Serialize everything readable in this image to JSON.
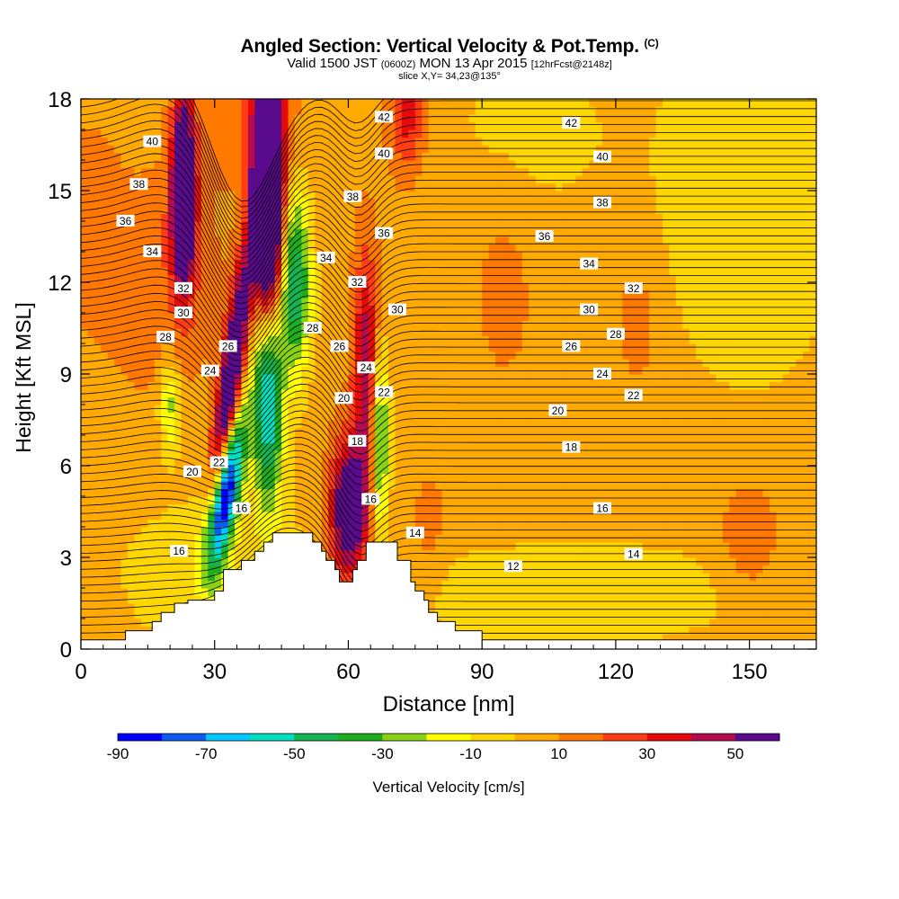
{
  "header": {
    "title": "Angled Section: Vertical Velocity & Pot.Temp.",
    "title_units": "(C)",
    "valid_prefix": "Valid 1500 JST",
    "valid_utc": "(0600Z)",
    "valid_date": "MON 13 Apr 2015",
    "forecast": "[12hrFcst@2148z]",
    "slice": "slice X,Y= 34,23@135°"
  },
  "chart_data": {
    "type": "heatmap",
    "xlabel": "Distance [nm]",
    "ylabel": "Height [Kft MSL]",
    "xlim": [
      0,
      165
    ],
    "ylim": [
      0,
      18
    ],
    "x_ticks": [
      0,
      30,
      60,
      90,
      120,
      150
    ],
    "y_ticks": [
      0,
      3,
      6,
      9,
      12,
      15,
      18
    ],
    "grid": false,
    "colorbar": {
      "label": "Vertical Velocity [cm/s]",
      "boundaries": [
        -90,
        -80,
        -70,
        -60,
        -50,
        -40,
        -30,
        -20,
        -10,
        0,
        10,
        20,
        30,
        40,
        50,
        60
      ],
      "tick_labels": [
        "-90",
        "-70",
        "-50",
        "-30",
        "-10",
        "10",
        "30",
        "50"
      ],
      "tick_values": [
        -90,
        -70,
        -50,
        -30,
        -10,
        10,
        30,
        50
      ],
      "colors": [
        "#0000ff",
        "#0a5cf0",
        "#00c8ff",
        "#00e0c0",
        "#14b450",
        "#1ead1e",
        "#88d214",
        "#ffff00",
        "#ffd700",
        "#ffaa00",
        "#ff7800",
        "#ff3c14",
        "#e60a0a",
        "#b40a4e",
        "#5a0a8c"
      ]
    },
    "terrain": [
      [
        0,
        0.3
      ],
      [
        10,
        0.3
      ],
      [
        10,
        0.6
      ],
      [
        16,
        0.6
      ],
      [
        16,
        0.9
      ],
      [
        18,
        0.9
      ],
      [
        18,
        1.2
      ],
      [
        21,
        1.2
      ],
      [
        21,
        1.5
      ],
      [
        24,
        1.5
      ],
      [
        24,
        1.6
      ],
      [
        30,
        1.6
      ],
      [
        30,
        1.9
      ],
      [
        32,
        1.9
      ],
      [
        32,
        2.6
      ],
      [
        36,
        2.6
      ],
      [
        36,
        2.9
      ],
      [
        39,
        2.9
      ],
      [
        39,
        3.2
      ],
      [
        41,
        3.2
      ],
      [
        41,
        3.5
      ],
      [
        43,
        3.5
      ],
      [
        43,
        3.8
      ],
      [
        52,
        3.8
      ],
      [
        52,
        3.5
      ],
      [
        54,
        3.5
      ],
      [
        54,
        3.2
      ],
      [
        55,
        3.2
      ],
      [
        55,
        2.9
      ],
      [
        57,
        2.9
      ],
      [
        57,
        2.6
      ],
      [
        58,
        2.6
      ],
      [
        58,
        2.2
      ],
      [
        61,
        2.2
      ],
      [
        61,
        2.6
      ],
      [
        62,
        2.6
      ],
      [
        62,
        2.9
      ],
      [
        64,
        2.9
      ],
      [
        64,
        3.5
      ],
      [
        71,
        3.5
      ],
      [
        71,
        2.9
      ],
      [
        74,
        2.9
      ],
      [
        74,
        2.2
      ],
      [
        75,
        2.2
      ],
      [
        75,
        1.9
      ],
      [
        77,
        1.9
      ],
      [
        77,
        1.6
      ],
      [
        78,
        1.6
      ],
      [
        78,
        1.2
      ],
      [
        80,
        1.2
      ],
      [
        80,
        0.9
      ],
      [
        84,
        0.9
      ],
      [
        84,
        0.6
      ],
      [
        90,
        0.6
      ],
      [
        90,
        0.3
      ],
      [
        165,
        0.3
      ]
    ],
    "isentrope_labels": [
      {
        "x": 16,
        "y": 16.6,
        "text": "40"
      },
      {
        "x": 13,
        "y": 15.2,
        "text": "38"
      },
      {
        "x": 10,
        "y": 14.0,
        "text": "36"
      },
      {
        "x": 16,
        "y": 13.0,
        "text": "34"
      },
      {
        "x": 23,
        "y": 11.8,
        "text": "32"
      },
      {
        "x": 23,
        "y": 11.0,
        "text": "30"
      },
      {
        "x": 19,
        "y": 10.2,
        "text": "28"
      },
      {
        "x": 33,
        "y": 9.9,
        "text": "26"
      },
      {
        "x": 29,
        "y": 9.1,
        "text": "24"
      },
      {
        "x": 31,
        "y": 6.1,
        "text": "22"
      },
      {
        "x": 25,
        "y": 5.8,
        "text": "20"
      },
      {
        "x": 22,
        "y": 3.2,
        "text": "16"
      },
      {
        "x": 36,
        "y": 4.6,
        "text": "16"
      },
      {
        "x": 55,
        "y": 12.8,
        "text": "34"
      },
      {
        "x": 52,
        "y": 10.5,
        "text": "28"
      },
      {
        "x": 58,
        "y": 9.9,
        "text": "26"
      },
      {
        "x": 59,
        "y": 8.2,
        "text": "20"
      },
      {
        "x": 62,
        "y": 6.8,
        "text": "18"
      },
      {
        "x": 62,
        "y": 12.0,
        "text": "32"
      },
      {
        "x": 64,
        "y": 9.2,
        "text": "24"
      },
      {
        "x": 65,
        "y": 4.9,
        "text": "16"
      },
      {
        "x": 61,
        "y": 14.8,
        "text": "38"
      },
      {
        "x": 68,
        "y": 16.2,
        "text": "40"
      },
      {
        "x": 68,
        "y": 17.4,
        "text": "42"
      },
      {
        "x": 68,
        "y": 13.6,
        "text": "36"
      },
      {
        "x": 71,
        "y": 11.1,
        "text": "30"
      },
      {
        "x": 68,
        "y": 8.4,
        "text": "22"
      },
      {
        "x": 75,
        "y": 3.8,
        "text": "14"
      },
      {
        "x": 110,
        "y": 17.2,
        "text": "42"
      },
      {
        "x": 117,
        "y": 16.1,
        "text": "40"
      },
      {
        "x": 117,
        "y": 14.6,
        "text": "38"
      },
      {
        "x": 104,
        "y": 13.5,
        "text": "36"
      },
      {
        "x": 114,
        "y": 12.6,
        "text": "34"
      },
      {
        "x": 124,
        "y": 11.8,
        "text": "32"
      },
      {
        "x": 114,
        "y": 11.1,
        "text": "30"
      },
      {
        "x": 120,
        "y": 10.3,
        "text": "28"
      },
      {
        "x": 110,
        "y": 9.9,
        "text": "26"
      },
      {
        "x": 117,
        "y": 9.0,
        "text": "24"
      },
      {
        "x": 124,
        "y": 8.3,
        "text": "22"
      },
      {
        "x": 107,
        "y": 7.8,
        "text": "20"
      },
      {
        "x": 110,
        "y": 6.6,
        "text": "18"
      },
      {
        "x": 117,
        "y": 4.6,
        "text": "16"
      },
      {
        "x": 124,
        "y": 3.1,
        "text": "14"
      },
      {
        "x": 97,
        "y": 2.7,
        "text": "12"
      }
    ]
  }
}
